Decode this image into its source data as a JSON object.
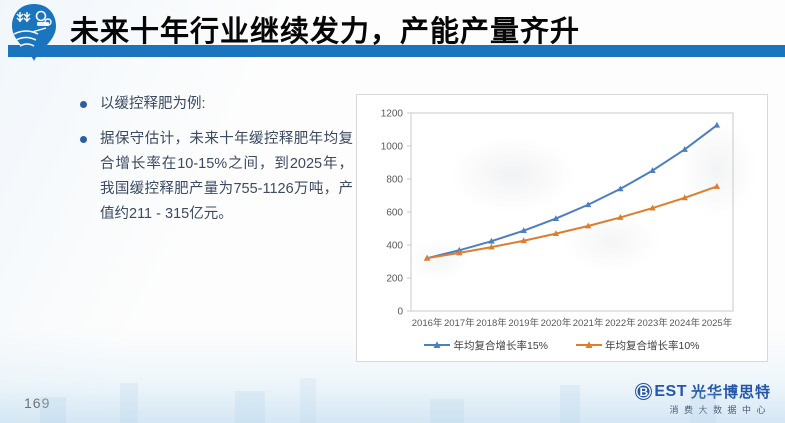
{
  "header": {
    "title": "未来十年行业继续发力，产能产量齐升"
  },
  "bullets": [
    "以缓控释肥为例:",
    "据保守估计，未来十年缓控释肥年均复合增长率在10-15%之间，到2025年，我国缓控释肥产量为755-1126万吨，产值约211 - 315亿元。"
  ],
  "chart_data": {
    "type": "line",
    "categories": [
      "2016年",
      "2017年",
      "2018年",
      "2019年",
      "2020年",
      "2021年",
      "2022年",
      "2023年",
      "2024年",
      "2025年"
    ],
    "series": [
      {
        "name": "年均复合增长率15%",
        "color": "#4d7ebf",
        "values": [
          320,
          368,
          423,
          487,
          560,
          644,
          740,
          851,
          979,
          1126
        ]
      },
      {
        "name": "年均复合增长率10%",
        "color": "#dd7d2e",
        "values": [
          320,
          352,
          387,
          426,
          469,
          515,
          567,
          624,
          686,
          755
        ]
      }
    ],
    "title": "",
    "xlabel": "",
    "ylabel": "",
    "ylim": [
      0,
      1200
    ],
    "yticks": [
      0,
      200,
      400,
      600,
      800,
      1000,
      1200
    ],
    "grid": false,
    "legend_position": "bottom"
  },
  "footer": {
    "page_number": "169",
    "brand": {
      "logo_b": "B",
      "logo_rest": "EST",
      "company": "光华博思特",
      "tagline": "消费大数据中心"
    }
  },
  "colors": {
    "header_bar": "#1b74be",
    "bullet_dot": "#2e5c9e",
    "text": "#3c4a61",
    "axis_text": "#595959",
    "plot_border": "#c9c9c9",
    "brand_blue": "#2457a7"
  }
}
